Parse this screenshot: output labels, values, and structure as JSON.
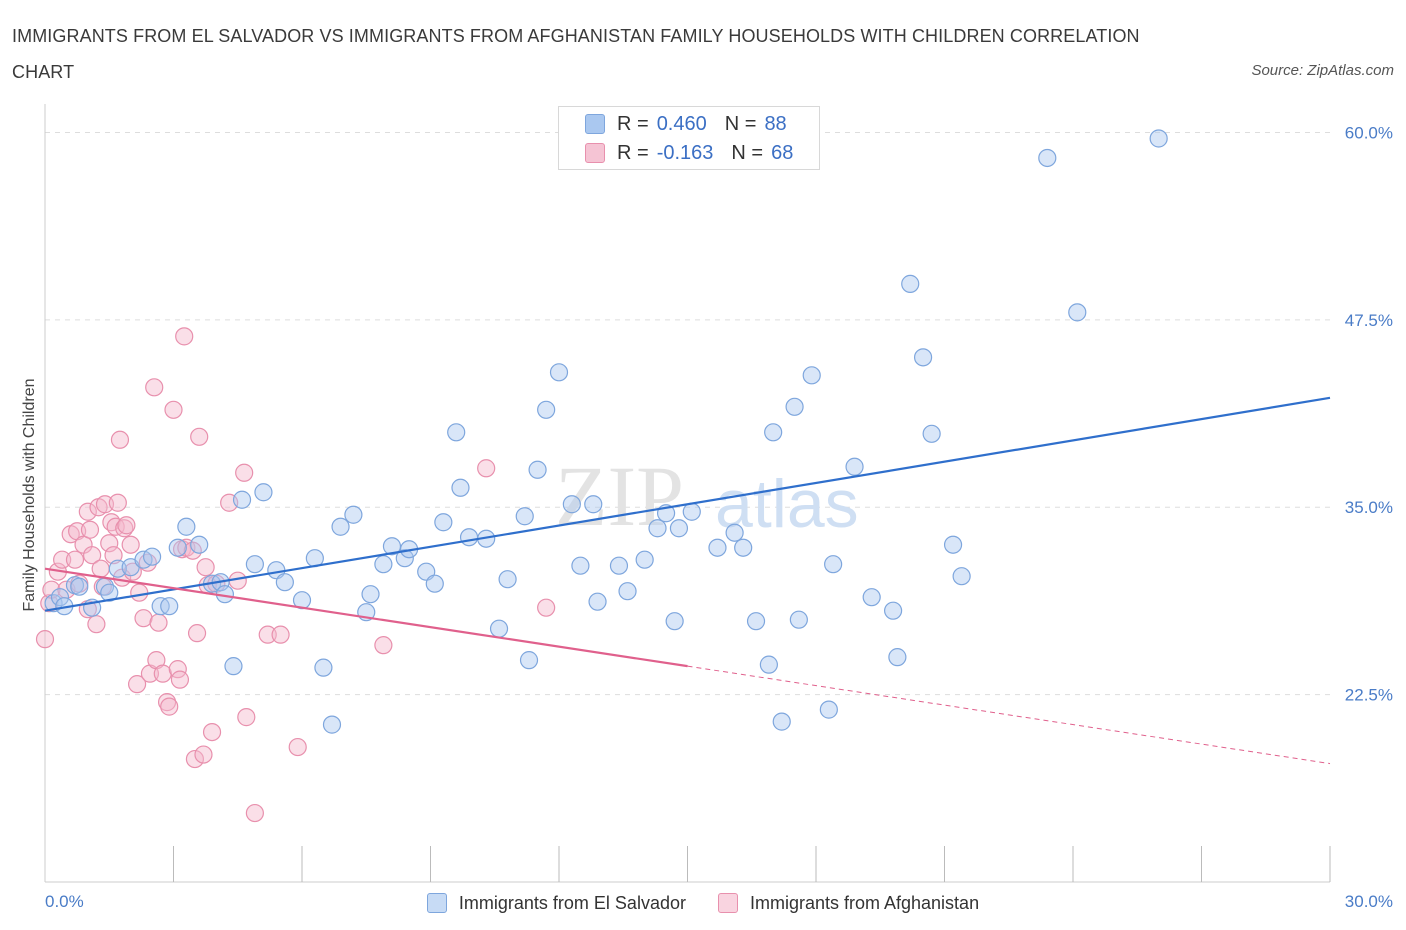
{
  "title": "IMMIGRANTS FROM EL SALVADOR VS IMMIGRANTS FROM AFGHANISTAN FAMILY HOUSEHOLDS WITH CHILDREN CORRELATION CHART",
  "source": "Source: ZipAtlas.com",
  "watermark": {
    "part1": "ZIP",
    "part2": "atlas"
  },
  "colors": {
    "blue_fill": "#aac8f0",
    "blue_stroke": "#7ea6dd",
    "blue_line": "#2f6fcc",
    "pink_fill": "#f5b8cb",
    "pink_stroke": "#e890ad",
    "pink_line": "#e0608c",
    "grid": "#dddddd",
    "axis_text": "#4a7cc7"
  },
  "legend": {
    "rows": [
      {
        "r_label": "R =",
        "r_value": "0.460",
        "n_label": "N =",
        "n_value": "88"
      },
      {
        "r_label": "R =",
        "r_value": "-0.163",
        "n_label": "N =",
        "n_value": "68"
      }
    ]
  },
  "chart_data": {
    "type": "scatter",
    "title": "IMMIGRANTS FROM EL SALVADOR VS IMMIGRANTS FROM AFGHANISTAN FAMILY HOUSEHOLDS WITH CHILDREN CORRELATION CHART",
    "xlabel": "",
    "ylabel": "Family Households with Children",
    "xlim": [
      0,
      30
    ],
    "ylim": [
      10,
      61.5
    ],
    "x_tick_labels": [
      "0.0%",
      "30.0%"
    ],
    "y_ticks": [
      22.5,
      35.0,
      47.5,
      60.0
    ],
    "y_tick_labels": [
      "22.5%",
      "35.0%",
      "47.5%",
      "60.0%"
    ],
    "grid": true,
    "legend_position": "top-center",
    "series": [
      {
        "name": "Immigrants from El Salvador",
        "trend": {
          "x1": 0,
          "y1": 28.1,
          "x2": 30,
          "y2": 42.3
        },
        "points": [
          [
            0.2,
            28.6
          ],
          [
            0.35,
            29.0
          ],
          [
            0.45,
            28.4
          ],
          [
            0.7,
            29.8
          ],
          [
            0.8,
            29.7
          ],
          [
            1.1,
            28.3
          ],
          [
            1.4,
            29.7
          ],
          [
            1.5,
            29.3
          ],
          [
            1.7,
            30.9
          ],
          [
            2.0,
            31.0
          ],
          [
            2.3,
            31.5
          ],
          [
            2.5,
            31.7
          ],
          [
            2.7,
            28.4
          ],
          [
            2.9,
            28.4
          ],
          [
            3.1,
            32.3
          ],
          [
            3.3,
            33.7
          ],
          [
            3.6,
            32.5
          ],
          [
            3.9,
            29.9
          ],
          [
            4.1,
            30.0
          ],
          [
            4.2,
            29.2
          ],
          [
            4.4,
            24.4
          ],
          [
            4.6,
            35.5
          ],
          [
            4.9,
            31.2
          ],
          [
            5.1,
            36.0
          ],
          [
            5.4,
            30.8
          ],
          [
            5.6,
            30.0
          ],
          [
            6.0,
            28.8
          ],
          [
            6.3,
            31.6
          ],
          [
            6.5,
            24.3
          ],
          [
            6.7,
            20.5
          ],
          [
            6.9,
            33.7
          ],
          [
            7.2,
            34.5
          ],
          [
            7.5,
            28.0
          ],
          [
            7.6,
            29.2
          ],
          [
            7.9,
            31.2
          ],
          [
            8.1,
            32.4
          ],
          [
            8.4,
            31.6
          ],
          [
            8.5,
            32.2
          ],
          [
            8.9,
            30.7
          ],
          [
            9.1,
            29.9
          ],
          [
            9.3,
            34.0
          ],
          [
            9.6,
            40.0
          ],
          [
            9.7,
            36.3
          ],
          [
            9.9,
            33.0
          ],
          [
            10.3,
            32.9
          ],
          [
            10.6,
            26.9
          ],
          [
            10.8,
            30.2
          ],
          [
            11.2,
            34.4
          ],
          [
            11.3,
            24.8
          ],
          [
            11.5,
            37.5
          ],
          [
            11.7,
            41.5
          ],
          [
            12.0,
            44.0
          ],
          [
            12.3,
            35.2
          ],
          [
            12.5,
            31.1
          ],
          [
            12.8,
            35.2
          ],
          [
            12.9,
            28.7
          ],
          [
            13.4,
            31.1
          ],
          [
            13.6,
            29.4
          ],
          [
            14.0,
            31.5
          ],
          [
            14.3,
            33.6
          ],
          [
            14.5,
            34.6
          ],
          [
            14.7,
            27.4
          ],
          [
            14.8,
            33.6
          ],
          [
            15.1,
            34.7
          ],
          [
            15.7,
            32.3
          ],
          [
            16.1,
            33.3
          ],
          [
            16.3,
            32.3
          ],
          [
            16.6,
            27.4
          ],
          [
            16.9,
            24.5
          ],
          [
            17.0,
            40.0
          ],
          [
            17.2,
            20.7
          ],
          [
            17.5,
            41.7
          ],
          [
            17.6,
            27.5
          ],
          [
            17.9,
            43.8
          ],
          [
            18.3,
            21.5
          ],
          [
            18.4,
            31.2
          ],
          [
            18.9,
            37.7
          ],
          [
            19.3,
            29.0
          ],
          [
            19.8,
            28.1
          ],
          [
            19.9,
            25.0
          ],
          [
            20.2,
            49.9
          ],
          [
            20.5,
            45.0
          ],
          [
            20.7,
            39.9
          ],
          [
            21.2,
            32.5
          ],
          [
            21.4,
            30.4
          ],
          [
            23.4,
            58.3
          ],
          [
            24.1,
            48.0
          ],
          [
            26.0,
            59.6
          ]
        ]
      },
      {
        "name": "Immigrants from Afghanistan",
        "trend": {
          "x1": 0,
          "y1": 30.9,
          "x2": 15.0,
          "y2": 24.4,
          "dash_to_x": 30,
          "dash_to_y": 17.9
        },
        "points": [
          [
            0.0,
            26.2
          ],
          [
            0.1,
            28.6
          ],
          [
            0.15,
            29.5
          ],
          [
            0.3,
            30.7
          ],
          [
            0.4,
            31.5
          ],
          [
            0.5,
            29.5
          ],
          [
            0.6,
            33.2
          ],
          [
            0.7,
            31.5
          ],
          [
            0.75,
            33.4
          ],
          [
            0.8,
            29.9
          ],
          [
            0.9,
            32.5
          ],
          [
            1.0,
            34.7
          ],
          [
            1.0,
            28.2
          ],
          [
            1.05,
            33.5
          ],
          [
            1.1,
            31.8
          ],
          [
            1.2,
            27.2
          ],
          [
            1.25,
            35.0
          ],
          [
            1.3,
            30.9
          ],
          [
            1.35,
            29.7
          ],
          [
            1.4,
            35.2
          ],
          [
            1.5,
            32.6
          ],
          [
            1.55,
            34.0
          ],
          [
            1.6,
            31.8
          ],
          [
            1.65,
            33.7
          ],
          [
            1.7,
            35.3
          ],
          [
            1.75,
            39.5
          ],
          [
            1.8,
            30.3
          ],
          [
            1.85,
            33.6
          ],
          [
            1.9,
            33.8
          ],
          [
            2.0,
            32.5
          ],
          [
            2.05,
            30.7
          ],
          [
            2.15,
            23.2
          ],
          [
            2.2,
            29.3
          ],
          [
            2.3,
            27.6
          ],
          [
            2.4,
            31.3
          ],
          [
            2.45,
            23.9
          ],
          [
            2.55,
            43.0
          ],
          [
            2.6,
            24.8
          ],
          [
            2.65,
            27.3
          ],
          [
            2.75,
            23.9
          ],
          [
            2.85,
            22.0
          ],
          [
            2.9,
            21.7
          ],
          [
            3.0,
            41.5
          ],
          [
            3.1,
            24.2
          ],
          [
            3.15,
            23.5
          ],
          [
            3.2,
            32.2
          ],
          [
            3.25,
            46.4
          ],
          [
            3.3,
            32.3
          ],
          [
            3.45,
            32.1
          ],
          [
            3.5,
            18.2
          ],
          [
            3.55,
            26.6
          ],
          [
            3.6,
            39.7
          ],
          [
            3.7,
            18.5
          ],
          [
            3.75,
            31.0
          ],
          [
            3.8,
            29.8
          ],
          [
            3.9,
            20.0
          ],
          [
            4.0,
            29.9
          ],
          [
            4.3,
            35.3
          ],
          [
            4.5,
            30.1
          ],
          [
            4.65,
            37.3
          ],
          [
            4.7,
            21.0
          ],
          [
            4.9,
            14.6
          ],
          [
            5.2,
            26.5
          ],
          [
            5.5,
            26.5
          ],
          [
            5.9,
            19.0
          ],
          [
            7.9,
            25.8
          ],
          [
            10.3,
            37.6
          ],
          [
            11.7,
            28.3
          ]
        ]
      }
    ]
  }
}
